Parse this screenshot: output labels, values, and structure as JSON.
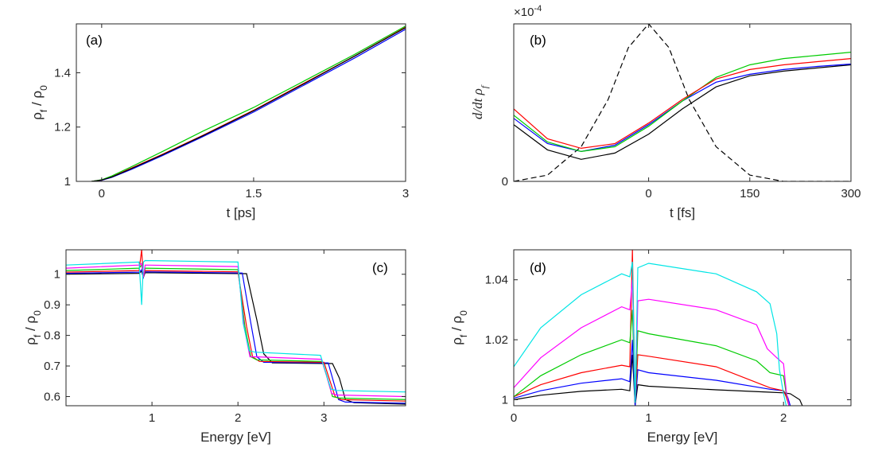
{
  "chart_data": [
    {
      "type": "line",
      "panel_label": "(a)",
      "xlabel": "t [ps]",
      "ylabel": "ρ_f / ρ_0",
      "xlim": [
        -0.25,
        3
      ],
      "ylim": [
        1,
        1.58
      ],
      "xticks": [
        0,
        1.5,
        3
      ],
      "xtick_labels": [
        "0",
        "1.5",
        "3"
      ],
      "yticks": [
        1,
        1.2,
        1.4
      ],
      "ytick_labels": [
        "1",
        "1.2",
        "1.4"
      ],
      "series": [
        {
          "color": "#0000ff",
          "x": [
            -0.1,
            0,
            0.1,
            0.3,
            0.6,
            1.0,
            1.5,
            2.0,
            2.5,
            3.0
          ],
          "y": [
            1.0,
            1.004,
            1.015,
            1.045,
            1.095,
            1.165,
            1.255,
            1.355,
            1.455,
            1.56
          ]
        },
        {
          "color": "#ff0000",
          "x": [
            -0.1,
            0,
            0.1,
            0.3,
            0.6,
            1.0,
            1.5,
            2.0,
            2.5,
            3.0
          ],
          "y": [
            1.0,
            1.005,
            1.017,
            1.05,
            1.1,
            1.17,
            1.262,
            1.362,
            1.462,
            1.568
          ]
        },
        {
          "color": "#00cc00",
          "x": [
            -0.1,
            0,
            0.1,
            0.3,
            0.6,
            1.0,
            1.5,
            2.0,
            2.5,
            3.0
          ],
          "y": [
            1.0,
            1.006,
            1.02,
            1.055,
            1.11,
            1.185,
            1.272,
            1.37,
            1.468,
            1.572
          ]
        },
        {
          "color": "#000000",
          "x": [
            -0.1,
            0,
            0.1,
            0.3,
            0.6,
            1.0,
            1.5,
            2.0,
            2.5,
            3.0
          ],
          "y": [
            1.0,
            1.005,
            1.016,
            1.048,
            1.098,
            1.168,
            1.26,
            1.36,
            1.462,
            1.566
          ]
        }
      ]
    },
    {
      "type": "line",
      "panel_label": "(b)",
      "xlabel": "t [fs]",
      "ylabel": "d/dt ρ_f",
      "exponent_label": "×10^-4",
      "xlim": [
        -200,
        300
      ],
      "ylim": [
        0,
        1
      ],
      "xticks": [
        0,
        150,
        300
      ],
      "xtick_labels": [
        "0",
        "150",
        "300"
      ],
      "yticks": [
        0
      ],
      "ytick_labels": [
        "0"
      ],
      "series": [
        {
          "color": "#000000",
          "dashed": true,
          "x": [
            -200,
            -150,
            -100,
            -60,
            -30,
            0,
            30,
            60,
            100,
            150,
            200,
            300
          ],
          "y": [
            0.0,
            0.04,
            0.22,
            0.52,
            0.85,
            1.0,
            0.85,
            0.52,
            0.22,
            0.04,
            0.0,
            0.0
          ]
        },
        {
          "color": "#000000",
          "x": [
            -200,
            -150,
            -100,
            -50,
            0,
            50,
            100,
            150,
            200,
            250,
            300
          ],
          "y": [
            0.36,
            0.2,
            0.14,
            0.18,
            0.3,
            0.46,
            0.6,
            0.67,
            0.7,
            0.72,
            0.74
          ]
        },
        {
          "color": "#0000ff",
          "x": [
            -200,
            -150,
            -100,
            -50,
            0,
            50,
            100,
            150,
            200,
            250,
            300
          ],
          "y": [
            0.4,
            0.24,
            0.19,
            0.23,
            0.36,
            0.51,
            0.63,
            0.68,
            0.71,
            0.73,
            0.745
          ]
        },
        {
          "color": "#00cc00",
          "x": [
            -200,
            -150,
            -100,
            -50,
            0,
            50,
            100,
            150,
            200,
            250,
            300
          ],
          "y": [
            0.42,
            0.25,
            0.19,
            0.22,
            0.35,
            0.51,
            0.66,
            0.74,
            0.78,
            0.8,
            0.82
          ]
        },
        {
          "color": "#ff0000",
          "x": [
            -200,
            -150,
            -100,
            -50,
            0,
            50,
            100,
            150,
            200,
            250,
            300
          ],
          "y": [
            0.46,
            0.27,
            0.21,
            0.24,
            0.37,
            0.52,
            0.65,
            0.71,
            0.74,
            0.76,
            0.78
          ]
        }
      ]
    },
    {
      "type": "line",
      "panel_label": "(c)",
      "xlabel": "Energy [eV]",
      "ylabel": "ρ_f / ρ_0",
      "xlim": [
        0,
        3.95
      ],
      "ylim": [
        0.57,
        1.08
      ],
      "xticks": [
        1,
        2,
        3
      ],
      "xtick_labels": [
        "1",
        "2",
        "3"
      ],
      "yticks": [
        0.6,
        0.7,
        0.8,
        0.9,
        1.0
      ],
      "ytick_labels": [
        "0.6",
        "0.7",
        "0.8",
        "0.9",
        "1"
      ],
      "series": [
        {
          "color": "#000000",
          "x": [
            0,
            0.85,
            0.88,
            0.9,
            0.92,
            2.1,
            2.22,
            2.3,
            2.4,
            3.1,
            3.18,
            3.25,
            3.35,
            3.95
          ],
          "y": [
            1.0,
            1.003,
            1.01,
            0.99,
            1.005,
            1.002,
            0.85,
            0.74,
            0.71,
            0.708,
            0.66,
            0.59,
            0.58,
            0.575
          ]
        },
        {
          "color": "#0000ff",
          "x": [
            0,
            0.85,
            0.88,
            0.9,
            0.92,
            2.05,
            2.15,
            2.22,
            2.3,
            3.05,
            3.1,
            3.17,
            3.25,
            3.95
          ],
          "y": [
            1.003,
            1.007,
            1.015,
            0.99,
            1.008,
            1.004,
            0.84,
            0.73,
            0.712,
            0.71,
            0.66,
            0.59,
            0.582,
            0.578
          ]
        },
        {
          "color": "#ff0000",
          "x": [
            0,
            0.85,
            0.88,
            0.9,
            0.92,
            2.0,
            2.1,
            2.17,
            2.25,
            3.0,
            3.06,
            3.13,
            3.2,
            3.95
          ],
          "y": [
            1.007,
            1.012,
            1.08,
            0.99,
            1.012,
            1.008,
            0.83,
            0.73,
            0.715,
            0.712,
            0.66,
            0.6,
            0.59,
            0.585
          ]
        },
        {
          "color": "#00cc00",
          "x": [
            0,
            0.85,
            0.88,
            0.9,
            0.92,
            2.0,
            2.08,
            2.15,
            2.22,
            2.98,
            3.04,
            3.1,
            3.18,
            3.95
          ],
          "y": [
            1.012,
            1.02,
            1.03,
            0.99,
            1.02,
            1.015,
            0.83,
            0.73,
            0.72,
            0.715,
            0.66,
            0.6,
            0.595,
            0.59
          ]
        },
        {
          "color": "#ff00ff",
          "x": [
            0,
            0.85,
            0.88,
            0.9,
            0.92,
            2.0,
            2.07,
            2.14,
            2.2,
            2.97,
            3.03,
            3.09,
            3.15,
            3.95
          ],
          "y": [
            1.02,
            1.03,
            1.035,
            0.99,
            1.03,
            1.025,
            0.83,
            0.73,
            0.73,
            0.722,
            0.67,
            0.61,
            0.605,
            0.6
          ]
        },
        {
          "color": "#00e5e5",
          "x": [
            0,
            0.85,
            0.88,
            0.9,
            0.92,
            2.0,
            2.06,
            2.13,
            2.2,
            2.96,
            3.02,
            3.08,
            3.14,
            3.95
          ],
          "y": [
            1.03,
            1.04,
            0.9,
            1.04,
            1.045,
            1.04,
            0.84,
            0.75,
            0.745,
            0.735,
            0.68,
            0.625,
            0.62,
            0.615
          ]
        }
      ]
    },
    {
      "type": "line",
      "panel_label": "(d)",
      "xlabel": "Energy [eV]",
      "ylabel": "ρ_f / ρ_0",
      "xlim": [
        0,
        2.5
      ],
      "ylim": [
        0.998,
        1.05
      ],
      "xticks": [
        0,
        1,
        2
      ],
      "xtick_labels": [
        "0",
        "1",
        "2"
      ],
      "yticks": [
        1.0,
        1.02,
        1.04
      ],
      "ytick_labels": [
        "1",
        "1.02",
        "1.04"
      ],
      "series": [
        {
          "color": "#000000",
          "x": [
            0,
            0.2,
            0.5,
            0.8,
            0.86,
            0.88,
            0.9,
            0.92,
            1.0,
            1.5,
            1.9,
            2.0,
            2.05,
            2.12,
            2.14
          ],
          "y": [
            1.0,
            1.0015,
            1.0028,
            1.0035,
            1.003,
            1.015,
            0.998,
            1.005,
            1.0045,
            1.0033,
            1.0025,
            1.0023,
            1.002,
            1.0,
            0.998
          ]
        },
        {
          "color": "#0000ff",
          "x": [
            0,
            0.2,
            0.5,
            0.8,
            0.86,
            0.88,
            0.9,
            0.92,
            1.0,
            1.5,
            1.9,
            2.0,
            2.03,
            2.05
          ],
          "y": [
            1.0005,
            1.003,
            1.0055,
            1.007,
            1.006,
            1.02,
            0.998,
            1.01,
            1.009,
            1.0065,
            1.0035,
            1.003,
            1.001,
            0.998
          ]
        },
        {
          "color": "#ff0000",
          "x": [
            0,
            0.2,
            0.5,
            0.8,
            0.86,
            0.88,
            0.9,
            0.92,
            1.0,
            1.5,
            1.9,
            2.0,
            2.02,
            2.04
          ],
          "y": [
            1.001,
            1.005,
            1.009,
            1.0115,
            1.011,
            1.05,
            0.999,
            1.015,
            1.0145,
            1.011,
            1.004,
            1.003,
            1.001,
            0.998
          ]
        },
        {
          "color": "#00cc00",
          "x": [
            0,
            0.2,
            0.5,
            0.8,
            0.86,
            0.88,
            0.9,
            0.92,
            1.0,
            1.5,
            1.8,
            1.9,
            2.0,
            2.02,
            2.04
          ],
          "y": [
            1.001,
            1.008,
            1.015,
            1.02,
            1.019,
            1.03,
            0.999,
            1.023,
            1.022,
            1.018,
            1.013,
            1.009,
            1.008,
            1.002,
            0.998
          ]
        },
        {
          "color": "#ff00ff",
          "x": [
            0,
            0.2,
            0.5,
            0.8,
            0.86,
            0.88,
            0.9,
            0.92,
            1.0,
            1.5,
            1.8,
            1.88,
            1.95,
            2.0,
            2.02,
            2.04
          ],
          "y": [
            1.004,
            1.014,
            1.024,
            1.031,
            1.03,
            1.04,
            0.999,
            1.033,
            1.0335,
            1.03,
            1.025,
            1.017,
            1.014,
            1.012,
            1.003,
            0.998
          ]
        },
        {
          "color": "#00e5e5",
          "x": [
            0,
            0.2,
            0.5,
            0.8,
            0.86,
            0.88,
            0.9,
            0.92,
            1.0,
            1.5,
            1.8,
            1.9,
            1.95,
            1.97,
            2.0,
            2.02
          ],
          "y": [
            1.011,
            1.024,
            1.035,
            1.042,
            1.041,
            1.046,
            0.999,
            1.044,
            1.0455,
            1.042,
            1.036,
            1.032,
            1.022,
            1.01,
            1.002,
            0.998
          ]
        }
      ]
    }
  ]
}
